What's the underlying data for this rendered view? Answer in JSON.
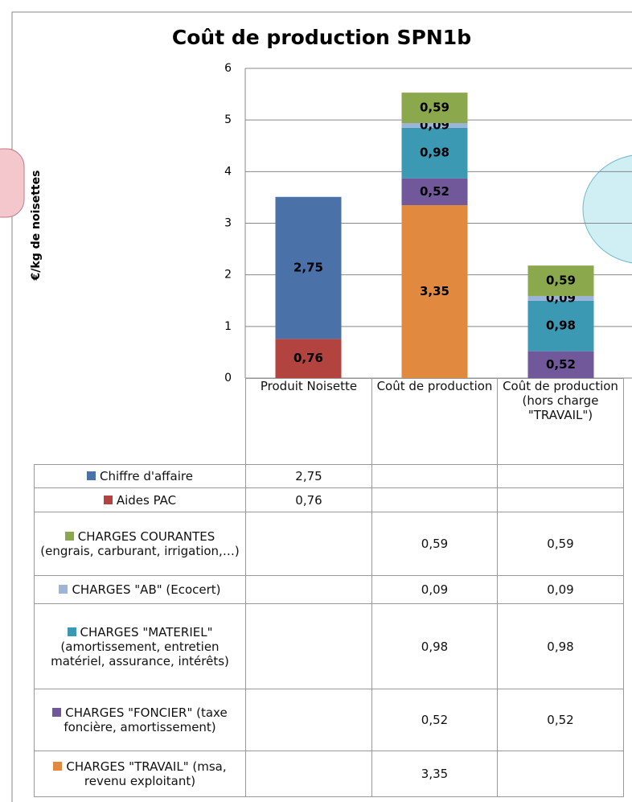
{
  "chart_data": {
    "type": "bar",
    "stacked": true,
    "title": "Coût de production SPN1b",
    "y_label": "€/kg de noisettes",
    "categories": [
      "Produit Noisette",
      "Coût de production",
      "Coût de production (hors charge \"TRAVAIL\")"
    ],
    "ylim": [
      0,
      6
    ],
    "yticks": [
      0,
      1,
      2,
      3,
      4,
      5,
      6
    ],
    "grid": true,
    "series": [
      {
        "name": "Chiffre d'affaire",
        "color": "#4a71a8",
        "values": [
          2.75,
          null,
          null
        ],
        "value_labels": [
          "2,75",
          null,
          null
        ]
      },
      {
        "name": "Aides PAC",
        "color": "#b2433f",
        "values": [
          0.76,
          null,
          null
        ],
        "value_labels": [
          "0,76",
          null,
          null
        ]
      },
      {
        "name": "CHARGES COURANTES (engrais, carburant, irrigation,…)",
        "color": "#8ba94c",
        "values": [
          null,
          0.59,
          0.59
        ],
        "value_labels": [
          null,
          "0,59",
          "0,59"
        ]
      },
      {
        "name": "CHARGES \"AB\" (Ecocert)",
        "color": "#9db4d9",
        "values": [
          null,
          0.09,
          0.09
        ],
        "value_labels": [
          null,
          "0,09",
          "0,09"
        ]
      },
      {
        "name": "CHARGES \"MATERIEL\" (amortissement, entretien matériel, assurance, intérêts)",
        "color": "#3b99b4",
        "values": [
          null,
          0.98,
          0.98
        ],
        "value_labels": [
          null,
          "0,98",
          "0,98"
        ]
      },
      {
        "name": "CHARGES \"FONCIER\" (taxe foncière, amortissement)",
        "color": "#71589a",
        "values": [
          null,
          0.52,
          0.52
        ],
        "value_labels": [
          null,
          "0,52",
          "0,52"
        ]
      },
      {
        "name": "CHARGES \"TRAVAIL\" (msa, revenu exploitant)",
        "color": "#e0893f",
        "values": [
          null,
          3.35,
          null
        ],
        "value_labels": [
          null,
          "3,35",
          null
        ]
      }
    ]
  }
}
